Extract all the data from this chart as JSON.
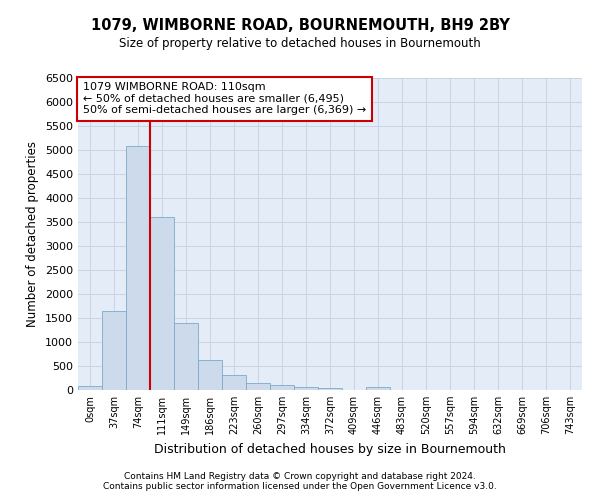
{
  "title": "1079, WIMBORNE ROAD, BOURNEMOUTH, BH9 2BY",
  "subtitle": "Size of property relative to detached houses in Bournemouth",
  "xlabel": "Distribution of detached houses by size in Bournemouth",
  "ylabel": "Number of detached properties",
  "bar_labels": [
    "0sqm",
    "37sqm",
    "74sqm",
    "111sqm",
    "149sqm",
    "186sqm",
    "223sqm",
    "260sqm",
    "297sqm",
    "334sqm",
    "372sqm",
    "409sqm",
    "446sqm",
    "483sqm",
    "520sqm",
    "557sqm",
    "594sqm",
    "632sqm",
    "669sqm",
    "706sqm",
    "743sqm"
  ],
  "bar_values": [
    75,
    1640,
    5080,
    3590,
    1400,
    615,
    305,
    155,
    100,
    55,
    45,
    0,
    55,
    0,
    0,
    0,
    0,
    0,
    0,
    0,
    0
  ],
  "bar_color": "#ccdaeb",
  "bar_edge_color": "#7aaac8",
  "vline_x_index": 3,
  "vline_color": "#cc0000",
  "annotation_text": "1079 WIMBORNE ROAD: 110sqm\n← 50% of detached houses are smaller (6,495)\n50% of semi-detached houses are larger (6,369) →",
  "annotation_box_facecolor": "#ffffff",
  "annotation_box_edgecolor": "#cc0000",
  "ylim": [
    0,
    6500
  ],
  "yticks": [
    0,
    500,
    1000,
    1500,
    2000,
    2500,
    3000,
    3500,
    4000,
    4500,
    5000,
    5500,
    6000,
    6500
  ],
  "grid_color": "#c8d4e4",
  "bg_color": "#e4ecf8",
  "footer1": "Contains HM Land Registry data © Crown copyright and database right 2024.",
  "footer2": "Contains public sector information licensed under the Open Government Licence v3.0."
}
